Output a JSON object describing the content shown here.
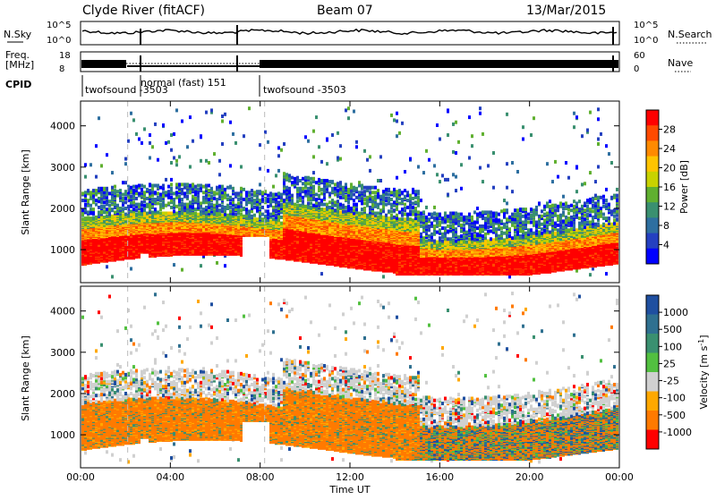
{
  "header": {
    "station": "Clyde River (fitACF)",
    "beam": "Beam 07",
    "date": "13/Mar/2015"
  },
  "top_panels": {
    "nsky_label": "N.Sky",
    "nsearch_label": "N.Search",
    "nsky_ticks": [
      "10^5",
      "10^0"
    ],
    "nsearch_ticks": [
      "10^5",
      "10^0"
    ],
    "freq_label": "Freq.",
    "freq_unit": "[MHz]",
    "freq_ticks": [
      "18",
      "8"
    ],
    "nave_label": "Nave",
    "nave_ticks": [
      "60",
      "0"
    ],
    "cpid_label": "CPID",
    "cpid_segments": [
      {
        "label": "twofsound -3503",
        "start_hr": 0.0,
        "end_hr": 2.1
      },
      {
        "label": "normal (fast) 151",
        "start_hr": 2.1,
        "end_hr": 8.2
      },
      {
        "label": "twofsound -3503",
        "start_hr": 8.2,
        "end_hr": 24.0
      }
    ]
  },
  "colorbars": {
    "power": {
      "label": "Power [dB]",
      "ticks": [
        "28",
        "24",
        "20",
        "16",
        "12",
        "8",
        "4"
      ],
      "colors": [
        "#ff0000",
        "#ff4a00",
        "#ff8a00",
        "#ffc400",
        "#c8d200",
        "#60b030",
        "#3a9070",
        "#2e6fa0",
        "#2440c0",
        "#0000ff"
      ]
    },
    "velocity": {
      "label": "Velocity [m s",
      "label_sup": "-1",
      "label_end": "]",
      "ticks": [
        "1000",
        "500",
        "100",
        "25",
        "-25",
        "-100",
        "-500",
        "-1000"
      ],
      "colors": [
        "#1f4fa0",
        "#2f7090",
        "#3a9070",
        "#52c040",
        "#d0d0d0",
        "#ffa800",
        "#ff7a00",
        "#ff0000"
      ]
    }
  },
  "chart_data": [
    {
      "type": "heatmap",
      "name": "power",
      "ylabel": "Slant Range [km]",
      "ylim": [
        200,
        4600
      ],
      "yticks": [
        1000,
        2000,
        3000,
        4000
      ],
      "xlim": [
        0,
        24
      ],
      "xtick_labels": [
        "00:00",
        "04:00",
        "08:00",
        "12:00",
        "16:00",
        "20:00",
        "00:00"
      ],
      "dominant_range_km": [
        700,
        1500
      ]
    },
    {
      "type": "heatmap",
      "name": "velocity",
      "ylabel": "Slant Range [km]",
      "ylim": [
        200,
        4600
      ],
      "yticks": [
        1000,
        2000,
        3000,
        4000
      ],
      "xlim": [
        0,
        24
      ],
      "xtick_labels": [
        "00:00",
        "04:00",
        "08:00",
        "12:00",
        "16:00",
        "20:00",
        "00:00"
      ],
      "xlabel": "Time UT",
      "dominant_range_km": [
        700,
        1500
      ]
    }
  ]
}
